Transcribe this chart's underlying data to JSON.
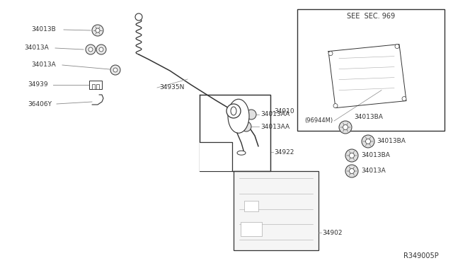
{
  "bg_color": "#ffffff",
  "dark_color": "#333333",
  "gray_color": "#888888",
  "label_color": "#333333",
  "ref_number": "R349005P",
  "see_sec_text": "SEE  SEC. 969",
  "see_sec_part": "(96944M)"
}
